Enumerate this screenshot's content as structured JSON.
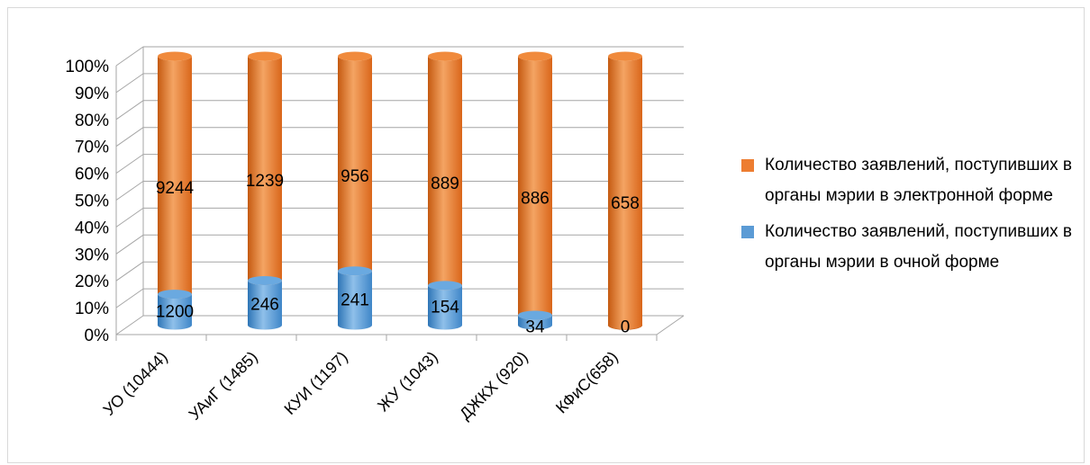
{
  "chart_data": {
    "type": "bar",
    "stacked": "percent",
    "style": "3d-cylinder",
    "title": "",
    "xlabel": "",
    "ylabel": "",
    "ylim": [
      0,
      100
    ],
    "y_ticks": [
      "0%",
      "10%",
      "20%",
      "30%",
      "40%",
      "50%",
      "60%",
      "70%",
      "80%",
      "90%",
      "100%"
    ],
    "categories": [
      "УО (10444)",
      "УАиГ (1485)",
      "КУИ (1197)",
      "ЖУ (1043)",
      "ДЖКХ (920)",
      "КФиС(658)"
    ],
    "series": [
      {
        "name": "Количество заявлений, поступивших в органы мэрии в очной форме",
        "color": "#5b9bd5",
        "values": [
          1200,
          246,
          241,
          154,
          34,
          0
        ]
      },
      {
        "name": "Количество заявлений, поступивших в органы мэрии в электронной форме",
        "color": "#ed7d31",
        "values": [
          9244,
          1239,
          956,
          889,
          886,
          658
        ]
      }
    ],
    "grid": true,
    "legend_position": "right"
  },
  "legend": {
    "items": [
      {
        "label": "Количество заявлений, поступивших в органы мэрии в электронной форме",
        "color": "#ed7d31"
      },
      {
        "label": "Количество заявлений, поступивших в органы мэрии в очной форме",
        "color": "#5b9bd5"
      }
    ]
  }
}
